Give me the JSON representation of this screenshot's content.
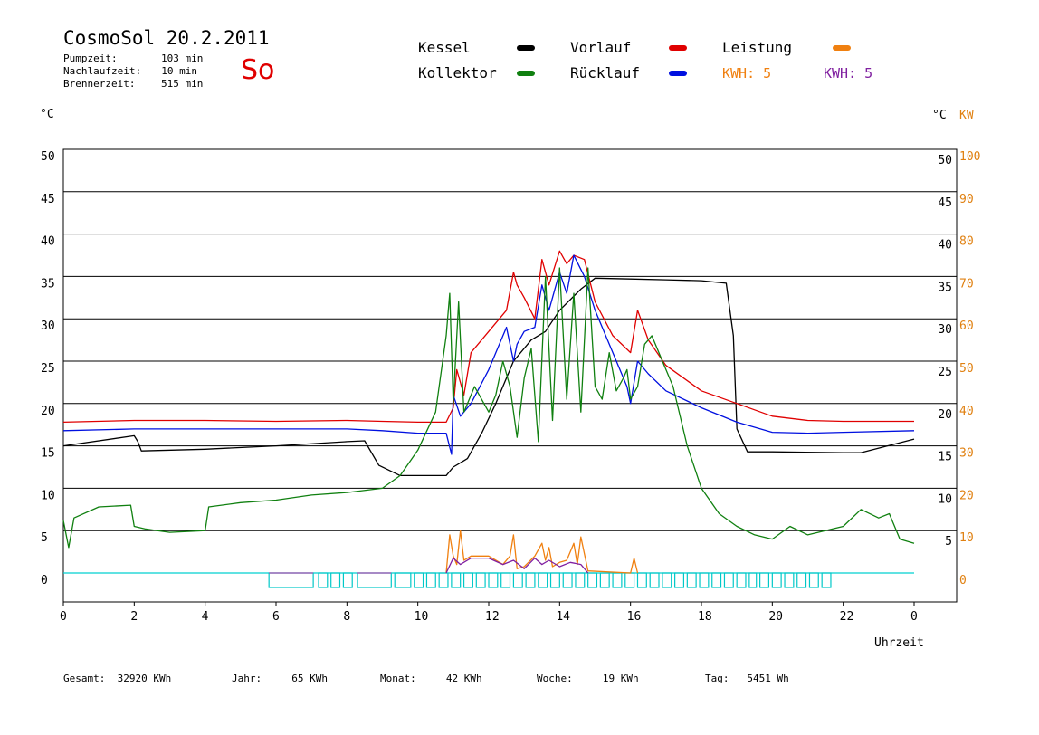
{
  "header": {
    "title": "CosmoSol 20.2.2011",
    "day": "So",
    "stats": [
      {
        "label": "Pumpzeit:",
        "value": "103 min"
      },
      {
        "label": "Nachlaufzeit:",
        "value": "10 min"
      },
      {
        "label": "Brennerzeit:",
        "value": "515 min"
      }
    ]
  },
  "legend": {
    "items": [
      {
        "label": "Kessel",
        "color": "#000000"
      },
      {
        "label": "Vorlauf",
        "color": "#e00000"
      },
      {
        "label": "Leistung",
        "color": "#f08010"
      },
      {
        "label": "Kollektor",
        "color": "#108010"
      },
      {
        "label": "Rücklauf",
        "color": "#0010e0"
      }
    ],
    "kwh_orange": "KWH: 5",
    "kwh_purple": "KWH: 5",
    "orange_color": "#f08010",
    "purple_color": "#8020a0"
  },
  "axes": {
    "left_unit": "°C",
    "right_unit_c": "°C",
    "right_unit_kw": "KW",
    "x_label": "Uhrzeit"
  },
  "footer": {
    "gesamt": "Gesamt:  32920 KWh",
    "jahr": "Jahr:     65 KWh",
    "monat": "Monat:     42 KWh",
    "woche": "Woche:     19 KWh",
    "tag": "Tag:   5451 Wh"
  },
  "chart_data": {
    "type": "line",
    "x_unit": "hours",
    "xlim": [
      0,
      24
    ],
    "x_ticks": [
      "0",
      "2",
      "4",
      "6",
      "8",
      "10",
      "12",
      "14",
      "16",
      "18",
      "20",
      "22",
      "0"
    ],
    "y_left_ticks": [
      "0",
      "5",
      "10",
      "15",
      "20",
      "25",
      "30",
      "35",
      "40",
      "45",
      "50"
    ],
    "y_right_ticks_c": [
      "5",
      "10",
      "15",
      "20",
      "25",
      "30",
      "35",
      "40",
      "45",
      "50"
    ],
    "y_right_ticks_kw": [
      "0",
      "10",
      "20",
      "30",
      "40",
      "50",
      "60",
      "70",
      "80",
      "90",
      "100"
    ],
    "ylim_left": [
      0,
      50
    ],
    "ylim_right_kw": [
      0,
      100
    ],
    "grid": true,
    "series": [
      {
        "name": "Kessel",
        "color": "#000000",
        "x": [
          0,
          2.0,
          2.1,
          2.2,
          4,
          6,
          8,
          8.5,
          8.9,
          9.5,
          10,
          10.8,
          11,
          11.4,
          11.8,
          12.2,
          12.7,
          13.2,
          13.6,
          14,
          14.6,
          15,
          16,
          17,
          18,
          18.7,
          18.9,
          19.0,
          19.3,
          20,
          22,
          22.5,
          24
        ],
        "y": [
          15.0,
          16.2,
          15.5,
          14.4,
          14.6,
          15.0,
          15.5,
          15.6,
          12.7,
          11.5,
          11.5,
          11.5,
          12.5,
          13.5,
          16.5,
          20.0,
          25.0,
          27.5,
          28.5,
          31.0,
          33.5,
          34.8,
          34.7,
          34.6,
          34.5,
          34.2,
          28.0,
          17.0,
          14.3,
          14.3,
          14.2,
          14.2,
          15.8
        ]
      },
      {
        "name": "Vorlauf",
        "color": "#e00000",
        "x": [
          0,
          2,
          4,
          6,
          8,
          9,
          10,
          10.8,
          11.0,
          11.1,
          11.3,
          11.5,
          12,
          12.5,
          12.7,
          12.8,
          13.0,
          13.3,
          13.5,
          13.7,
          14.0,
          14.2,
          14.4,
          14.7,
          15.0,
          15.5,
          16,
          16.2,
          16.5,
          17,
          18,
          19,
          20,
          21,
          22,
          24
        ],
        "y": [
          17.8,
          18.0,
          18.0,
          17.9,
          18.0,
          17.9,
          17.8,
          17.8,
          19.5,
          24.0,
          21.0,
          26.0,
          28.5,
          31.0,
          35.5,
          34.0,
          32.5,
          30.0,
          37.0,
          34.0,
          38.0,
          36.5,
          37.5,
          37.0,
          32.0,
          28.0,
          26.0,
          31.0,
          27.5,
          24.5,
          21.5,
          20.0,
          18.5,
          18.0,
          17.9,
          17.9
        ]
      },
      {
        "name": "Rücklauf",
        "color": "#0010e0",
        "x": [
          0,
          2,
          4,
          6,
          8,
          9,
          10,
          10.8,
          10.95,
          11.0,
          11.2,
          11.5,
          12,
          12.5,
          12.7,
          12.8,
          13.0,
          13.3,
          13.5,
          13.7,
          14.0,
          14.2,
          14.4,
          14.7,
          15.0,
          15.5,
          15.9,
          16.0,
          16.2,
          16.5,
          17,
          18,
          19,
          20,
          21,
          22,
          24
        ],
        "y": [
          16.8,
          17.0,
          17.0,
          17.0,
          17.0,
          16.8,
          16.5,
          16.5,
          14.0,
          21.0,
          18.5,
          20.0,
          24.0,
          29.0,
          25.0,
          27.0,
          28.5,
          29.0,
          34.0,
          31.0,
          35.5,
          33.0,
          37.5,
          35.0,
          31.0,
          26.0,
          22.0,
          20.0,
          25.0,
          23.5,
          21.5,
          19.5,
          17.8,
          16.6,
          16.5,
          16.6,
          16.8
        ]
      },
      {
        "name": "Kollektor",
        "color": "#108010",
        "x": [
          0,
          0.15,
          0.3,
          1,
          1.9,
          2.0,
          2.3,
          3,
          4.0,
          4.1,
          5,
          6,
          7,
          8,
          9,
          9.5,
          10,
          10.5,
          10.8,
          10.9,
          11.0,
          11.15,
          11.3,
          11.6,
          12,
          12.2,
          12.4,
          12.6,
          12.8,
          13.0,
          13.2,
          13.4,
          13.6,
          13.8,
          14.0,
          14.2,
          14.4,
          14.6,
          14.8,
          15.0,
          15.2,
          15.4,
          15.6,
          15.8,
          15.9,
          16.0,
          16.2,
          16.4,
          16.6,
          16.8,
          17.2,
          17.6,
          18.0,
          18.5,
          19,
          19.5,
          20,
          20.5,
          21,
          22,
          22.5,
          23,
          23.3,
          23.6,
          24
        ],
        "y": [
          6.2,
          3.0,
          6.5,
          7.8,
          8.0,
          5.5,
          5.2,
          4.8,
          5.0,
          7.8,
          8.3,
          8.6,
          9.2,
          9.5,
          10.0,
          11.5,
          14.5,
          19.0,
          28.0,
          33.0,
          20.0,
          32.0,
          19.0,
          22.0,
          19.0,
          21.0,
          25.0,
          22.0,
          16.0,
          23.0,
          26.5,
          15.5,
          35.0,
          18.0,
          36.0,
          20.5,
          33.0,
          19.0,
          36.0,
          22.0,
          20.5,
          26.0,
          21.5,
          23.0,
          24.0,
          20.5,
          22.0,
          27.0,
          28.0,
          26.0,
          22.0,
          15.0,
          10.0,
          7.0,
          5.5,
          4.5,
          4.0,
          5.5,
          4.5,
          5.5,
          7.5,
          6.5,
          7.0,
          4.0,
          3.5
        ]
      },
      {
        "name": "Leistung",
        "color": "#f08010",
        "axis": "right",
        "x": [
          10.8,
          10.9,
          11.0,
          11.1,
          11.2,
          11.3,
          11.5,
          12.0,
          12.4,
          12.6,
          12.7,
          12.8,
          13.0,
          13.3,
          13.5,
          13.6,
          13.7,
          13.8,
          14.0,
          14.2,
          14.4,
          14.5,
          14.6,
          14.8,
          16.0,
          16.1,
          16.2
        ],
        "y": [
          0,
          9.0,
          4.0,
          2.0,
          10.0,
          3.0,
          4.0,
          4.0,
          2.0,
          4.0,
          9.0,
          1.0,
          1.5,
          4.0,
          7.0,
          3.0,
          6.0,
          1.5,
          2.5,
          3.0,
          7.0,
          2.0,
          8.5,
          0.5,
          0,
          3.5,
          0
        ]
      },
      {
        "name": "",
        "color": "#8020a0",
        "axis": "right",
        "x": [
          10.8,
          11.0,
          11.2,
          11.5,
          12.0,
          12.4,
          12.7,
          13.0,
          13.3,
          13.5,
          13.7,
          14.0,
          14.3,
          14.6,
          14.8
        ],
        "y": [
          0,
          3.5,
          2.0,
          3.5,
          3.5,
          2.0,
          3.0,
          1.0,
          3.5,
          2.0,
          3.0,
          1.5,
          2.5,
          2.0,
          0
        ]
      }
    ],
    "status_bands": [
      [
        5.8,
        7.05
      ],
      [
        7.2,
        7.45
      ],
      [
        7.55,
        7.8
      ],
      [
        7.9,
        8.15
      ],
      [
        8.3,
        9.25
      ],
      [
        9.35,
        9.8
      ],
      [
        9.9,
        10.15
      ],
      [
        10.25,
        10.5
      ],
      [
        10.6,
        10.85
      ],
      [
        10.95,
        11.2
      ],
      [
        11.3,
        11.55
      ],
      [
        11.65,
        11.9
      ],
      [
        12.0,
        12.25
      ],
      [
        12.35,
        12.6
      ],
      [
        12.7,
        12.95
      ],
      [
        13.05,
        13.3
      ],
      [
        13.4,
        13.65
      ],
      [
        13.75,
        14.0
      ],
      [
        14.1,
        14.35
      ],
      [
        14.45,
        14.7
      ],
      [
        14.8,
        15.05
      ],
      [
        15.15,
        15.4
      ],
      [
        15.5,
        15.75
      ],
      [
        15.85,
        16.1
      ],
      [
        16.2,
        16.45
      ],
      [
        16.55,
        16.8
      ],
      [
        16.9,
        17.15
      ],
      [
        17.25,
        17.5
      ],
      [
        17.6,
        17.85
      ],
      [
        17.95,
        18.2
      ],
      [
        18.3,
        18.55
      ],
      [
        18.65,
        18.9
      ],
      [
        19.0,
        19.25
      ],
      [
        19.35,
        19.55
      ],
      [
        19.65,
        19.9
      ],
      [
        20.0,
        20.25
      ],
      [
        20.35,
        20.6
      ],
      [
        20.7,
        20.95
      ],
      [
        21.05,
        21.3
      ],
      [
        21.4,
        21.65
      ]
    ]
  }
}
